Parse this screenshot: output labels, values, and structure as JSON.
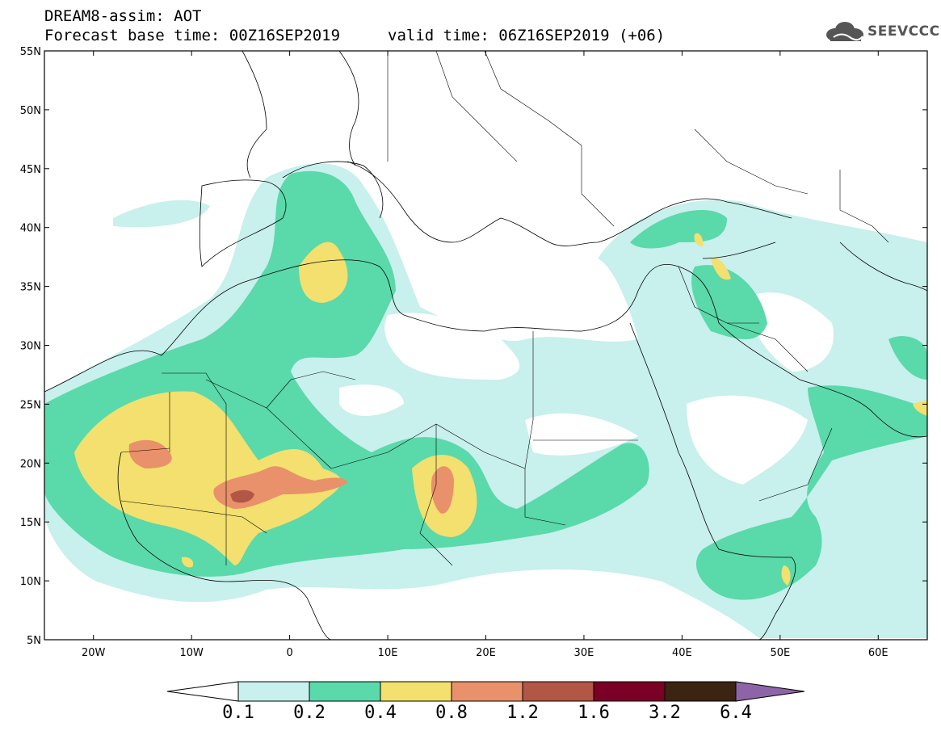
{
  "header": {
    "title_line1": "DREAM8-assim: AOT",
    "title_line2": "Forecast base time: 00Z16SEP2019",
    "valid_time": "valid time: 06Z16SEP2019 (+06)",
    "logo_text": "SEEVCCC"
  },
  "map": {
    "lat_labels": [
      "55N",
      "50N",
      "45N",
      "40N",
      "35N",
      "30N",
      "25N",
      "20N",
      "15N",
      "10N",
      "5N"
    ],
    "lon_labels": [
      "20W",
      "10W",
      "0",
      "10E",
      "20E",
      "30E",
      "40E",
      "50E",
      "60E"
    ],
    "extent": {
      "lon_min": -25,
      "lon_max": 65,
      "lat_min": 5,
      "lat_max": 55
    },
    "projection": "equirectangular",
    "variable": "Aerosol optical thickness"
  },
  "colorbar": {
    "levels": [
      "0.1",
      "0.2",
      "0.4",
      "0.8",
      "1.2",
      "1.6",
      "3.2",
      "6.4"
    ],
    "colors": [
      "#c8f0ec",
      "#5ad9aa",
      "#f3e06e",
      "#e8916a",
      "#b25646",
      "#7a0026",
      "#3b2412",
      "#8e64a8"
    ],
    "under_color": "#ffffff",
    "over_color": "#8e64a8"
  },
  "colors": {
    "aot_0_1": "#c8f0ec",
    "aot_0_2": "#5ad9aa",
    "aot_0_4": "#f3e06e",
    "aot_0_8": "#e8916a",
    "aot_1_2": "#b25646"
  }
}
